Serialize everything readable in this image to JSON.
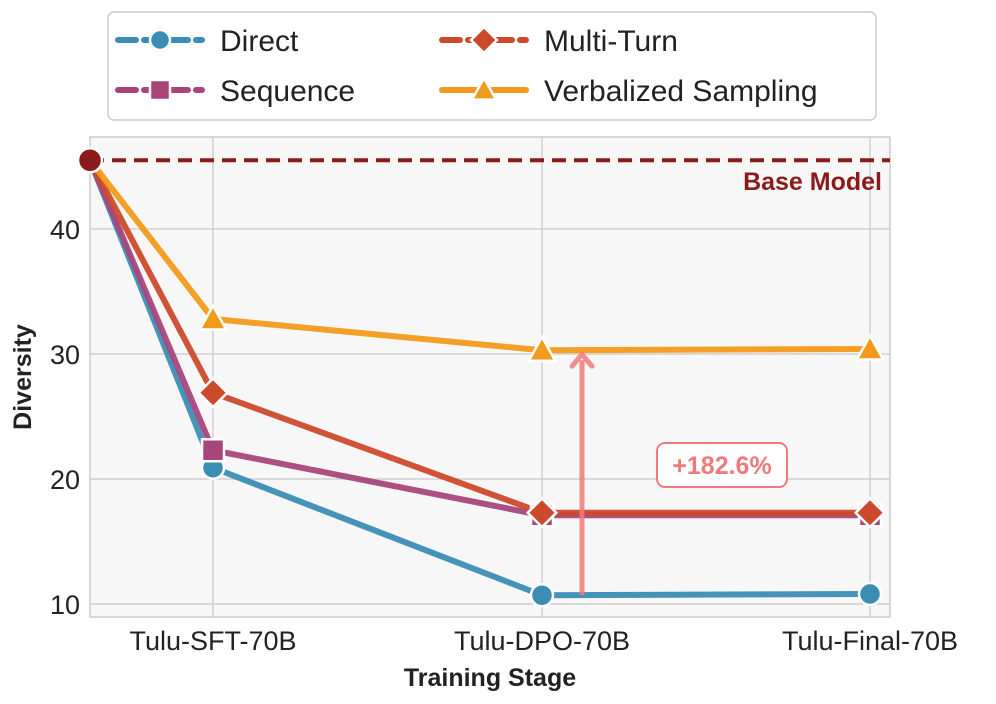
{
  "chart_data": {
    "type": "line",
    "title": "",
    "xlabel": "Training Stage",
    "ylabel": "Diversity",
    "x_start_label": "",
    "categories": [
      "Tulu-SFT-70B",
      "Tulu-DPO-70B",
      "Tulu-Final-70B"
    ],
    "yticks": [
      10,
      20,
      30,
      40
    ],
    "ylim": [
      9,
      47
    ],
    "grid": true,
    "legend_position": "top",
    "start_value": 45.5,
    "series": [
      {
        "name": "Direct",
        "values": [
          20.9,
          10.7,
          10.8
        ],
        "color": "#3b8db4",
        "marker": "circle",
        "linestyle": "dashed-legend"
      },
      {
        "name": "Sequence",
        "values": [
          22.3,
          17.1,
          17.1
        ],
        "color": "#a8467b",
        "marker": "square",
        "linestyle": "dashed-legend"
      },
      {
        "name": "Multi-Turn",
        "values": [
          26.9,
          17.3,
          17.3
        ],
        "color": "#cc4a2b",
        "marker": "diamond",
        "linestyle": "dashed-legend"
      },
      {
        "name": "Verbalized Sampling",
        "values": [
          32.8,
          30.3,
          30.4
        ],
        "color": "#f29a1c",
        "marker": "triangle",
        "linestyle": "solid"
      }
    ],
    "reference_line": {
      "label": "Base Model",
      "value": 45.5,
      "color": "#8b1a1a"
    },
    "annotation": {
      "text": "+182.6%",
      "from": 10.7,
      "to": 30.3,
      "category": "Tulu-DPO-70B",
      "color": "#f07b7b"
    }
  }
}
